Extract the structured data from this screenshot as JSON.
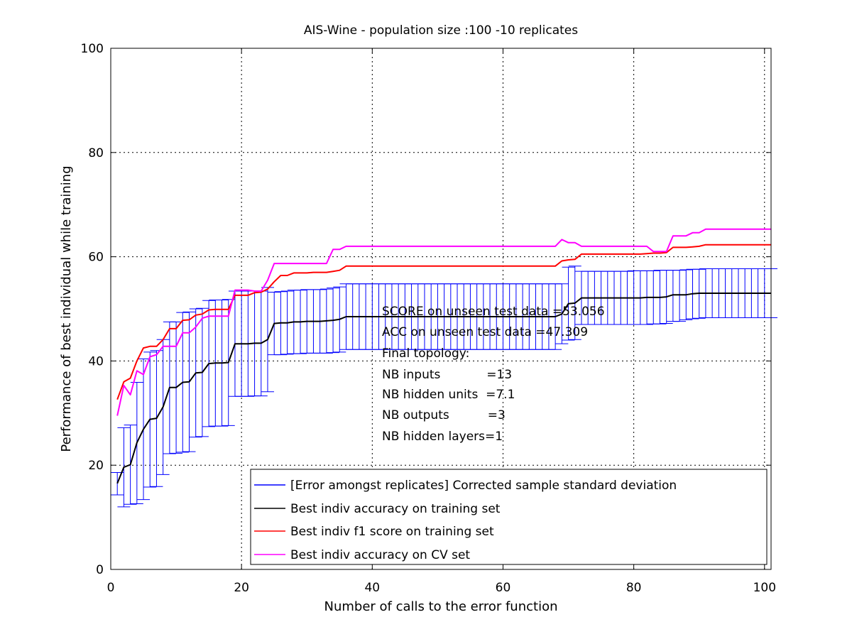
{
  "chart_data": {
    "type": "line",
    "title": "AIS-Wine - population size :100 -10 replicates",
    "xlabel": "Number of calls to the error function",
    "ylabel": "Performance of best individual while training",
    "xlim": [
      0,
      101
    ],
    "ylim": [
      0,
      100
    ],
    "xticks": [
      0,
      20,
      40,
      60,
      80,
      100
    ],
    "yticks": [
      0,
      20,
      40,
      60,
      80,
      100
    ],
    "grid": true,
    "legend_position": "bottom-right",
    "annotations": [
      "SCORE on unseen test data =53.056",
      "ACC on unseen test data =47.309",
      "Final topology:",
      "NB inputs            =13",
      "NB hidden units  =7.1",
      "NB outputs          =3",
      "NB hidden layers=1"
    ],
    "series": [
      {
        "name": "[Error amongst replicates] Corrected sample standard deviation",
        "kind": "errorbar",
        "color": "#0000ff",
        "x": [
          1,
          2,
          3,
          4,
          5,
          6,
          7,
          8,
          9,
          10,
          11,
          12,
          13,
          14,
          15,
          16,
          17,
          18,
          19,
          20,
          21,
          22,
          23,
          24,
          25,
          26,
          27,
          28,
          29,
          30,
          31,
          32,
          33,
          34,
          35,
          36,
          37,
          38,
          39,
          40,
          41,
          42,
          43,
          44,
          45,
          46,
          47,
          48,
          49,
          50,
          51,
          52,
          53,
          54,
          55,
          56,
          57,
          58,
          59,
          60,
          61,
          62,
          63,
          64,
          65,
          66,
          67,
          68,
          69,
          70,
          71,
          72,
          73,
          74,
          75,
          76,
          77,
          78,
          79,
          80,
          81,
          82,
          83,
          84,
          85,
          86,
          87,
          88,
          89,
          90,
          91,
          92,
          93,
          94,
          95,
          96,
          97,
          98,
          99,
          100,
          101
        ],
        "lower": [
          14.3,
          12.0,
          12.5,
          12.6,
          13.4,
          15.8,
          15.9,
          18.2,
          22.2,
          22.3,
          22.5,
          22.6,
          25.4,
          25.5,
          27.4,
          27.5,
          27.5,
          27.6,
          33.2,
          33.2,
          33.2,
          33.3,
          33.3,
          34.1,
          41.2,
          41.2,
          41.3,
          41.4,
          41.4,
          41.5,
          41.5,
          41.5,
          41.5,
          41.6,
          41.7,
          42.2,
          42.2,
          42.2,
          42.2,
          42.2,
          42.2,
          42.2,
          42.2,
          42.2,
          42.2,
          42.2,
          42.2,
          42.2,
          42.2,
          42.2,
          42.2,
          42.2,
          42.2,
          42.2,
          42.2,
          42.2,
          42.2,
          42.2,
          42.2,
          42.2,
          42.2,
          42.2,
          42.2,
          42.2,
          42.2,
          42.2,
          42.2,
          42.2,
          43.3,
          44.0,
          44.1,
          47.0,
          47.0,
          47.0,
          47.0,
          47.0,
          47.0,
          47.0,
          47.0,
          47.0,
          47.0,
          47.0,
          47.1,
          47.1,
          47.2,
          47.6,
          47.6,
          47.9,
          48.1,
          48.2,
          48.3,
          48.3,
          48.3,
          48.3,
          48.3,
          48.3,
          48.3,
          48.3,
          48.3,
          48.3,
          48.3
        ],
        "upper": [
          18.6,
          27.2,
          27.7,
          35.9,
          40.4,
          41.7,
          42.0,
          44.1,
          47.5,
          47.5,
          49.3,
          49.4,
          50.0,
          50.1,
          51.6,
          51.7,
          51.7,
          51.8,
          53.4,
          53.4,
          53.4,
          53.4,
          53.4,
          54.1,
          53.2,
          53.3,
          53.4,
          53.6,
          53.6,
          53.7,
          53.7,
          53.7,
          53.8,
          54.0,
          54.2,
          54.8,
          54.8,
          54.8,
          54.8,
          54.8,
          54.8,
          54.8,
          54.8,
          54.8,
          54.8,
          54.8,
          54.8,
          54.8,
          54.8,
          54.8,
          54.8,
          54.8,
          54.8,
          54.8,
          54.8,
          54.8,
          54.8,
          54.8,
          54.8,
          54.8,
          54.8,
          54.8,
          54.8,
          54.8,
          54.8,
          54.8,
          54.8,
          54.8,
          54.8,
          58.0,
          58.2,
          57.2,
          57.2,
          57.2,
          57.2,
          57.2,
          57.2,
          57.2,
          57.2,
          57.3,
          57.3,
          57.3,
          57.3,
          57.4,
          57.4,
          57.4,
          57.4,
          57.5,
          57.6,
          57.6,
          57.7,
          57.7,
          57.7,
          57.7,
          57.7,
          57.7,
          57.7,
          57.7,
          57.7,
          57.7,
          57.7
        ]
      },
      {
        "name": "Best indiv accuracy on training set",
        "kind": "line",
        "color": "#000000",
        "x": [
          1,
          2,
          3,
          4,
          5,
          6,
          7,
          8,
          9,
          10,
          11,
          12,
          13,
          14,
          15,
          16,
          17,
          18,
          19,
          20,
          21,
          22,
          23,
          24,
          25,
          26,
          27,
          28,
          29,
          30,
          31,
          32,
          33,
          34,
          35,
          36,
          37,
          38,
          39,
          40,
          41,
          42,
          43,
          44,
          45,
          46,
          47,
          48,
          49,
          50,
          51,
          52,
          53,
          54,
          55,
          56,
          57,
          58,
          59,
          60,
          61,
          62,
          63,
          64,
          65,
          66,
          67,
          68,
          69,
          70,
          71,
          72,
          73,
          74,
          75,
          76,
          77,
          78,
          79,
          80,
          81,
          82,
          83,
          84,
          85,
          86,
          87,
          88,
          89,
          90,
          91,
          92,
          93,
          94,
          95,
          96,
          97,
          98,
          99,
          100,
          101
        ],
        "y": [
          16.5,
          19.6,
          20.1,
          24.3,
          26.9,
          28.8,
          29.0,
          31.2,
          34.9,
          34.9,
          35.9,
          36.0,
          37.7,
          37.8,
          39.5,
          39.6,
          39.6,
          39.7,
          43.3,
          43.3,
          43.3,
          43.4,
          43.4,
          44.1,
          47.2,
          47.3,
          47.3,
          47.5,
          47.5,
          47.6,
          47.6,
          47.6,
          47.7,
          47.8,
          48.0,
          48.5,
          48.5,
          48.5,
          48.5,
          48.5,
          48.5,
          48.5,
          48.5,
          48.5,
          48.5,
          48.5,
          48.5,
          48.5,
          48.5,
          48.5,
          48.5,
          48.5,
          48.5,
          48.5,
          48.5,
          48.5,
          48.5,
          48.5,
          48.5,
          48.5,
          48.5,
          48.5,
          48.5,
          48.5,
          48.5,
          48.5,
          48.5,
          48.5,
          49.0,
          51.0,
          51.1,
          52.1,
          52.1,
          52.1,
          52.1,
          52.1,
          52.1,
          52.1,
          52.1,
          52.1,
          52.1,
          52.2,
          52.2,
          52.2,
          52.3,
          52.7,
          52.7,
          52.7,
          52.9,
          53.0,
          53.0,
          53.0,
          53.0,
          53.0,
          53.0,
          53.0,
          53.0,
          53.0,
          53.0,
          53.0,
          53.0
        ]
      },
      {
        "name": "Best indiv f1 score on training set",
        "kind": "line",
        "color": "#ff0000",
        "x": [
          1,
          2,
          3,
          4,
          5,
          6,
          7,
          8,
          9,
          10,
          11,
          12,
          13,
          14,
          15,
          16,
          17,
          18,
          19,
          20,
          21,
          22,
          23,
          24,
          25,
          26,
          27,
          28,
          29,
          30,
          31,
          32,
          33,
          34,
          35,
          36,
          37,
          38,
          39,
          40,
          41,
          42,
          43,
          44,
          45,
          46,
          47,
          48,
          49,
          50,
          51,
          52,
          53,
          54,
          55,
          56,
          57,
          58,
          59,
          60,
          61,
          62,
          63,
          64,
          65,
          66,
          67,
          68,
          69,
          70,
          71,
          72,
          73,
          74,
          75,
          76,
          77,
          78,
          79,
          80,
          81,
          82,
          83,
          84,
          85,
          86,
          87,
          88,
          89,
          90,
          91,
          92,
          93,
          94,
          95,
          96,
          97,
          98,
          99,
          100,
          101
        ],
        "y": [
          32.6,
          36.0,
          36.7,
          40.0,
          42.5,
          42.8,
          42.8,
          44.1,
          46.2,
          46.2,
          47.8,
          47.9,
          48.8,
          49.0,
          49.8,
          49.9,
          49.9,
          49.9,
          52.6,
          52.6,
          52.6,
          53.1,
          53.2,
          53.8,
          55.2,
          56.4,
          56.4,
          56.9,
          56.9,
          56.9,
          57.0,
          57.0,
          57.0,
          57.2,
          57.4,
          58.2,
          58.2,
          58.2,
          58.2,
          58.2,
          58.2,
          58.2,
          58.2,
          58.2,
          58.2,
          58.2,
          58.2,
          58.2,
          58.2,
          58.2,
          58.2,
          58.2,
          58.2,
          58.2,
          58.2,
          58.2,
          58.2,
          58.2,
          58.2,
          58.2,
          58.2,
          58.2,
          58.2,
          58.2,
          58.2,
          58.2,
          58.2,
          58.2,
          59.2,
          59.4,
          59.5,
          60.5,
          60.5,
          60.5,
          60.5,
          60.5,
          60.5,
          60.5,
          60.5,
          60.5,
          60.5,
          60.6,
          60.7,
          60.7,
          60.8,
          61.8,
          61.8,
          61.8,
          61.9,
          62.0,
          62.3,
          62.3,
          62.3,
          62.3,
          62.3,
          62.3,
          62.3,
          62.3,
          62.3,
          62.3,
          62.3
        ]
      },
      {
        "name": "Best indiv accuracy on CV set",
        "kind": "line",
        "color": "#ff00ff",
        "x": [
          1,
          2,
          3,
          4,
          5,
          6,
          7,
          8,
          9,
          10,
          11,
          12,
          13,
          14,
          15,
          16,
          17,
          18,
          19,
          20,
          21,
          22,
          23,
          24,
          25,
          26,
          27,
          28,
          29,
          30,
          31,
          32,
          33,
          34,
          35,
          36,
          37,
          38,
          39,
          40,
          41,
          42,
          43,
          44,
          45,
          46,
          47,
          48,
          49,
          50,
          51,
          52,
          53,
          54,
          55,
          56,
          57,
          58,
          59,
          60,
          61,
          62,
          63,
          64,
          65,
          66,
          67,
          68,
          69,
          70,
          71,
          72,
          73,
          74,
          75,
          76,
          77,
          78,
          79,
          80,
          81,
          82,
          83,
          84,
          85,
          86,
          87,
          88,
          89,
          90,
          91,
          92,
          93,
          94,
          95,
          96,
          97,
          98,
          99,
          100,
          101
        ],
        "y": [
          29.5,
          35.3,
          33.5,
          38.1,
          37.4,
          40.8,
          41.2,
          42.8,
          42.8,
          42.8,
          45.4,
          45.4,
          46.5,
          48.2,
          48.6,
          48.6,
          48.6,
          48.6,
          53.6,
          53.6,
          53.6,
          53.4,
          53.4,
          55.5,
          58.7,
          58.7,
          58.7,
          58.7,
          58.7,
          58.7,
          58.7,
          58.7,
          58.7,
          61.4,
          61.4,
          62.0,
          62.0,
          62.0,
          62.0,
          62.0,
          62.0,
          62.0,
          62.0,
          62.0,
          62.0,
          62.0,
          62.0,
          62.0,
          62.0,
          62.0,
          62.0,
          62.0,
          62.0,
          62.0,
          62.0,
          62.0,
          62.0,
          62.0,
          62.0,
          62.0,
          62.0,
          62.0,
          62.0,
          62.0,
          62.0,
          62.0,
          62.0,
          62.0,
          63.3,
          62.7,
          62.7,
          62.0,
          62.0,
          62.0,
          62.0,
          62.0,
          62.0,
          62.0,
          62.0,
          62.0,
          62.0,
          62.0,
          61.0,
          61.0,
          61.0,
          64.0,
          64.0,
          64.0,
          64.6,
          64.6,
          65.3,
          65.3,
          65.3,
          65.3,
          65.3,
          65.3,
          65.3,
          65.3,
          65.3,
          65.3,
          65.3
        ]
      }
    ]
  }
}
